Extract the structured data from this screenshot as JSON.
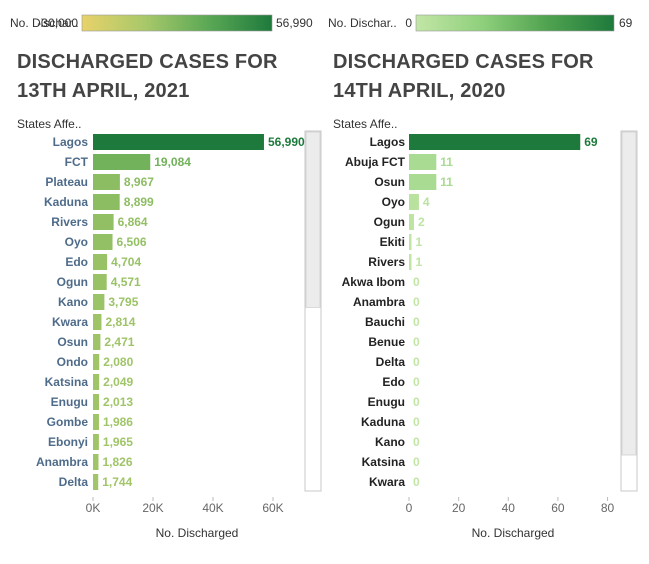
{
  "chart_data": [
    {
      "type": "bar",
      "orientation": "horizontal",
      "title_lines": [
        "DISCHARGED CASES FOR",
        "13TH APRIL, 2021"
      ],
      "category_header": "States Affe..",
      "xlabel": "No. Discharged",
      "xlim": [
        0,
        70000
      ],
      "xticks": [
        0,
        20000,
        40000,
        60000
      ],
      "xtick_labels": [
        "0K",
        "20K",
        "40K",
        "60K"
      ],
      "legend": {
        "title": "No. Dischar..",
        "min_label": "-30,000",
        "max_label": "56,990",
        "min": -30000,
        "max": 56990,
        "gradient": [
          "#e8d26a",
          "#a8c86a",
          "#5aa855",
          "#1e7a3c"
        ]
      },
      "categories": [
        "Lagos",
        "FCT",
        "Plateau",
        "Kaduna",
        "Rivers",
        "Oyo",
        "Edo",
        "Ogun",
        "Kano",
        "Kwara",
        "Osun",
        "Ondo",
        "Katsina",
        "Enugu",
        "Gombe",
        "Ebonyi",
        "Anambra",
        "Delta"
      ],
      "values": [
        56990,
        19084,
        8967,
        8899,
        6864,
        6506,
        4704,
        4571,
        3795,
        2814,
        2471,
        2080,
        2049,
        2013,
        1986,
        1965,
        1826,
        1744
      ],
      "value_labels": [
        "56,990",
        "19,084",
        "8,967",
        "8,899",
        "6,864",
        "6,506",
        "4,704",
        "4,571",
        "3,795",
        "2,814",
        "2,471",
        "2,080",
        "2,049",
        "2,013",
        "1,986",
        "1,965",
        "1,826",
        "1,744"
      ],
      "label_color": "#4e6b8a",
      "scrollbar": {
        "thumb_start": 0.0,
        "thumb_end": 0.49
      }
    },
    {
      "type": "bar",
      "orientation": "horizontal",
      "title_lines": [
        "DISCHARGED CASES FOR",
        "14TH APRIL, 2020"
      ],
      "category_header": "States Affe..",
      "xlabel": "No. Discharged",
      "xlim": [
        0,
        83
      ],
      "xticks": [
        0,
        20,
        40,
        60,
        80
      ],
      "xtick_labels": [
        "0",
        "20",
        "40",
        "60",
        "80"
      ],
      "legend": {
        "title": "No. Dischar..",
        "min_label": "0",
        "max_label": "69",
        "min": 0,
        "max": 69,
        "gradient": [
          "#c2e6a6",
          "#8fd07c",
          "#4fa24f",
          "#1e7a3c"
        ]
      },
      "categories": [
        "Lagos",
        "Abuja FCT",
        "Osun",
        "Oyo",
        "Ogun",
        "Ekiti",
        "Rivers",
        "Akwa Ibom",
        "Anambra",
        "Bauchi",
        "Benue",
        "Delta",
        "Edo",
        "Enugu",
        "Kaduna",
        "Kano",
        "Katsina",
        "Kwara"
      ],
      "values": [
        69,
        11,
        11,
        4,
        2,
        1,
        1,
        0,
        0,
        0,
        0,
        0,
        0,
        0,
        0,
        0,
        0,
        0
      ],
      "value_labels": [
        "69",
        "11",
        "11",
        "4",
        "2",
        "1",
        "1",
        "0",
        "0",
        "0",
        "0",
        "0",
        "0",
        "0",
        "0",
        "0",
        "0",
        "0"
      ],
      "label_color": "#222222",
      "scrollbar": {
        "thumb_start": 0.0,
        "thumb_end": 0.9
      }
    }
  ]
}
